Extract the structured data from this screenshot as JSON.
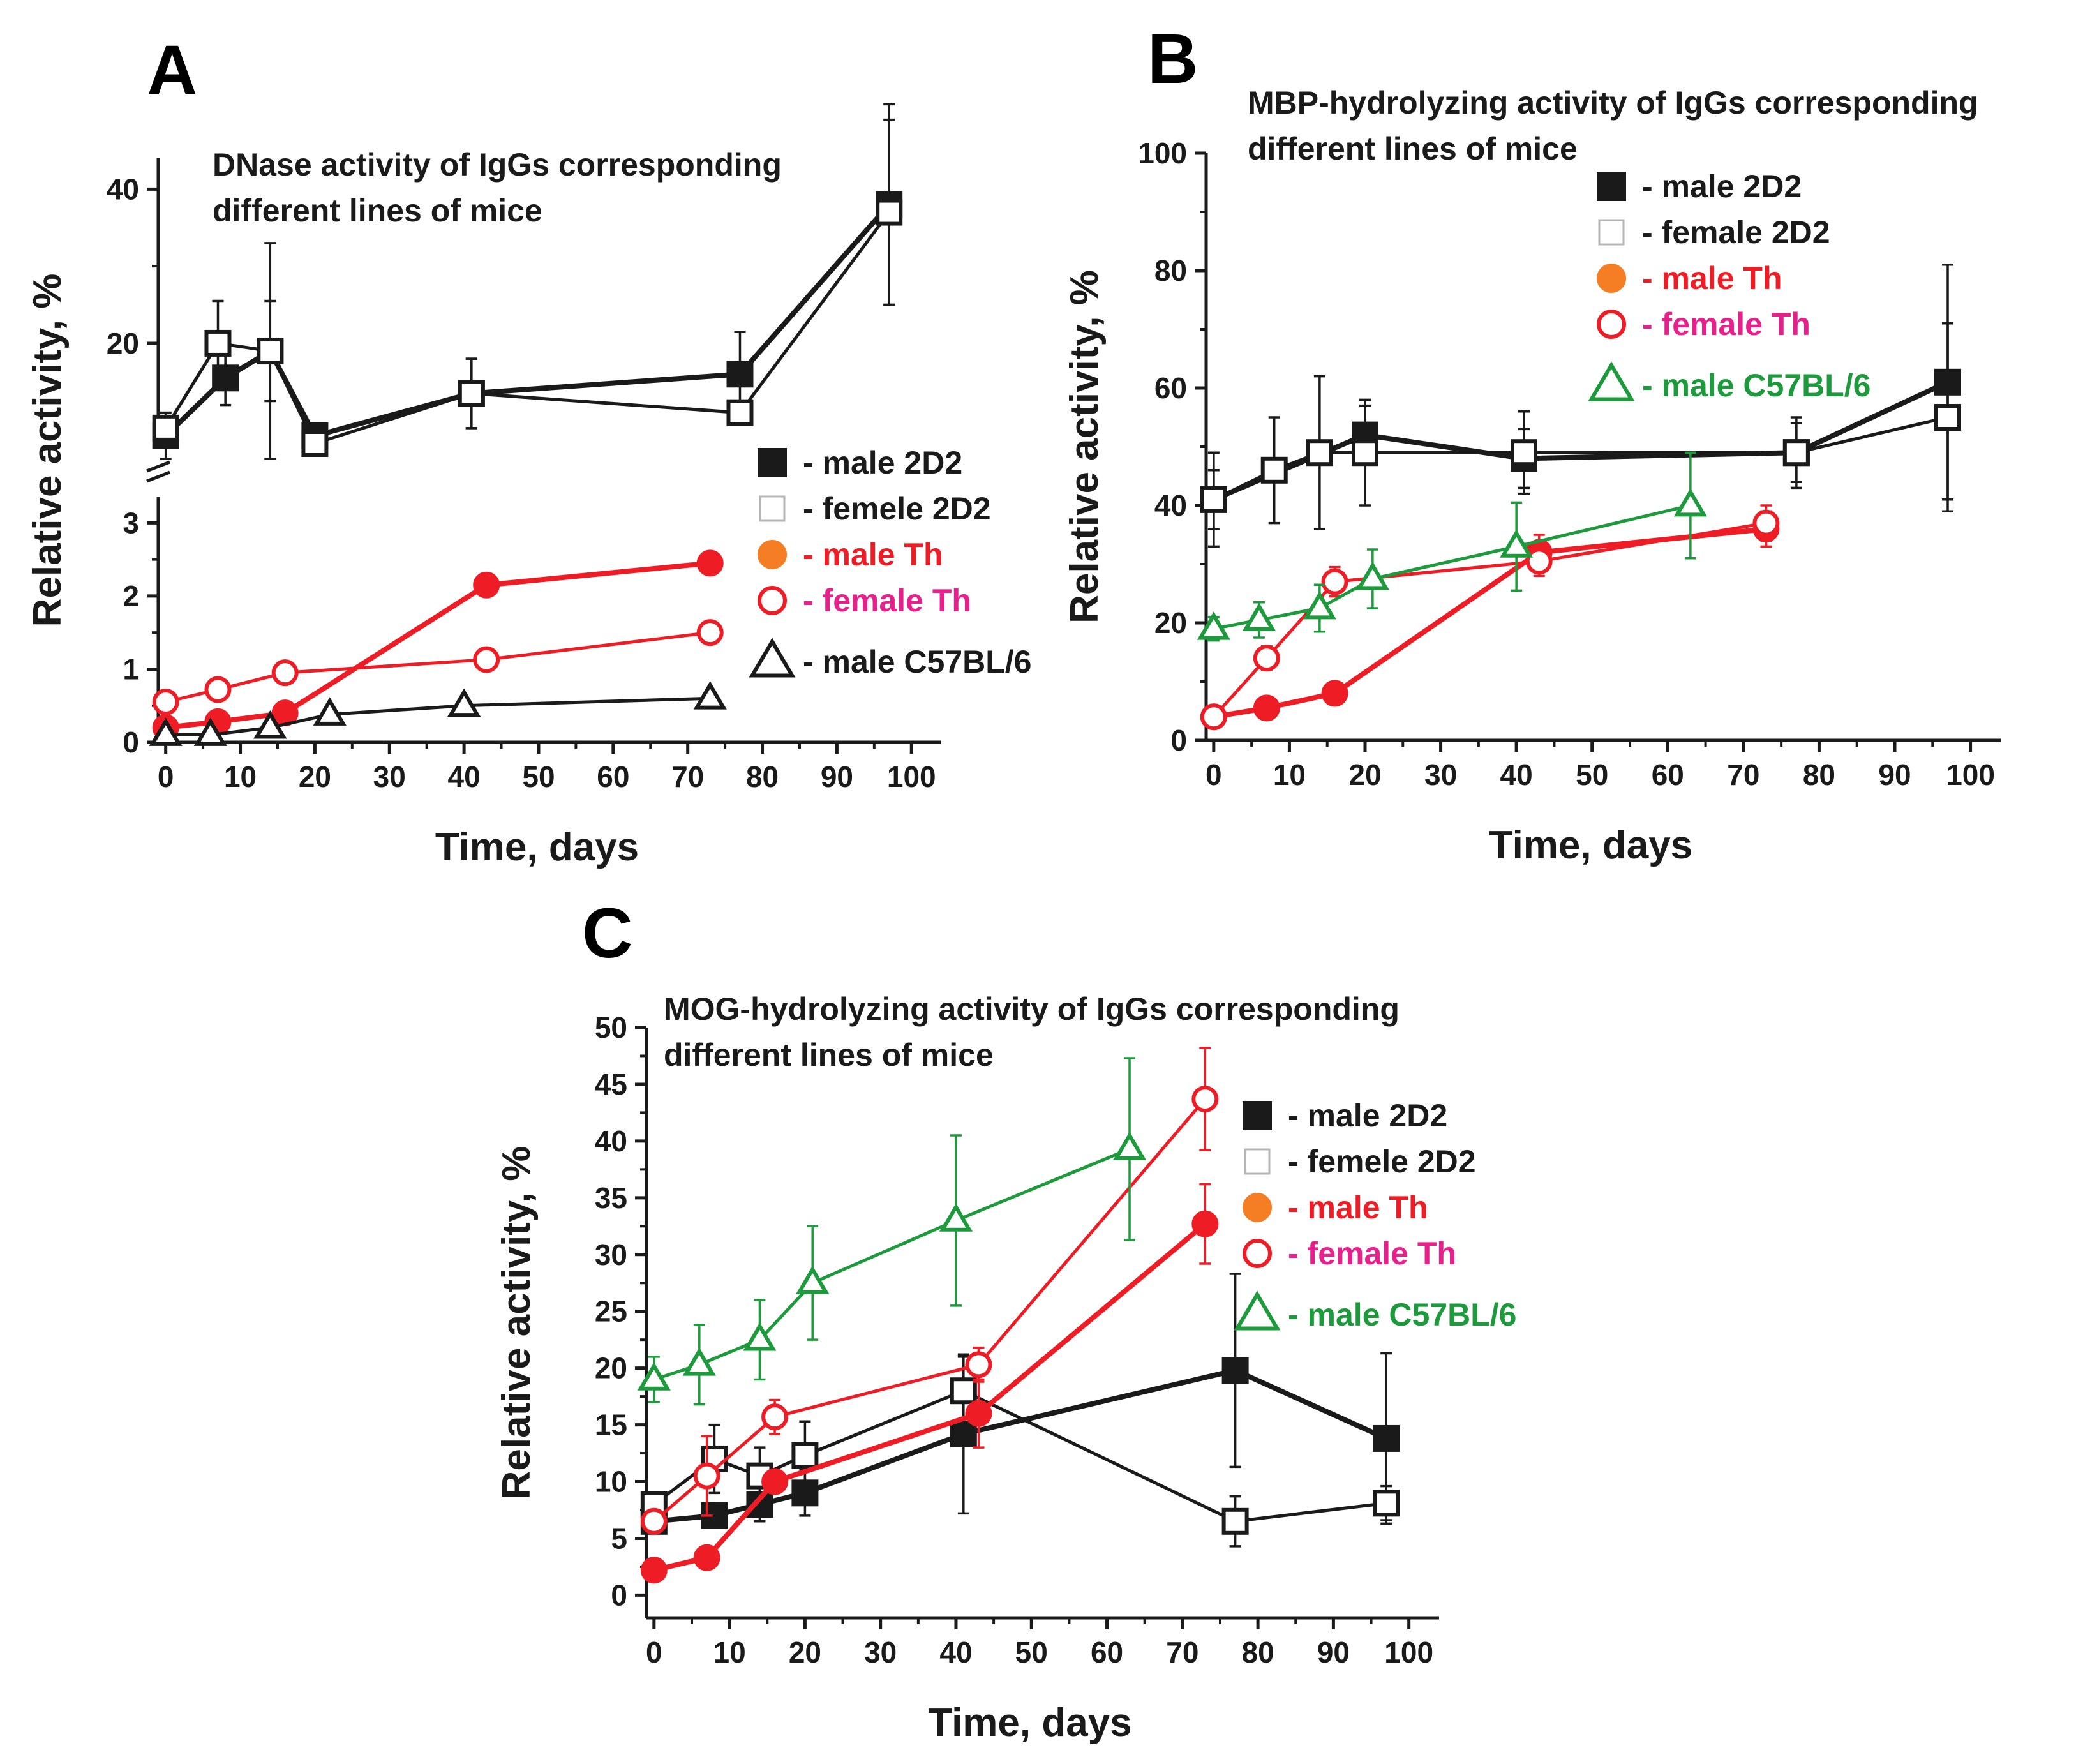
{
  "colors": {
    "black": "#1a1a1a",
    "red": "#ee1c25",
    "orange": "#f57d23",
    "magenta": "#e8208c",
    "green": "#1c9a3c"
  },
  "chart_data": [
    {
      "panel": "A",
      "type": "line",
      "title_lines": [
        "DNase  activity of IgGs corresponding",
        "different lines of mice"
      ],
      "xlabel": "Time, days",
      "ylabel": "Relative activity, %",
      "xlim": [
        -1,
        104
      ],
      "xticks": [
        0,
        10,
        20,
        30,
        40,
        50,
        60,
        70,
        80,
        90,
        100
      ],
      "y_axis_break": true,
      "ylim_lower": [
        0,
        3.3
      ],
      "yticks_lower": [
        0,
        1,
        2,
        3
      ],
      "ylim_upper": [
        7,
        44
      ],
      "yticks_upper": [
        20,
        40
      ],
      "legend_position": "right",
      "series": [
        {
          "name": "male 2D2",
          "legend_label": "- male 2D2",
          "label_color": "black",
          "marker": "square-filled",
          "color": "black",
          "segment": "upper",
          "x": [
            0,
            8,
            14,
            20,
            41,
            77,
            97
          ],
          "y": [
            8,
            15.5,
            19,
            8,
            13.5,
            16,
            38
          ],
          "err": [
            3,
            3.5,
            6.5,
            0,
            4.5,
            5.5,
            13
          ]
        },
        {
          "name": "femele 2D2",
          "legend_label": "- femele 2D2",
          "label_color": "black",
          "marker": "square-open",
          "color": "black",
          "segment": "upper",
          "x": [
            0,
            7,
            14,
            20,
            41,
            77,
            97
          ],
          "y": [
            9,
            20,
            19,
            7,
            13.5,
            11,
            37
          ],
          "err": [
            2,
            5.5,
            14,
            0,
            4.5,
            1.5,
            12
          ]
        },
        {
          "name": "male Th",
          "legend_label": "- male Th",
          "label_color": "red",
          "marker": "circle-filled",
          "color": "red",
          "segment": "lower",
          "legend_marker_color": "orange",
          "x": [
            0,
            7,
            16,
            43,
            73
          ],
          "y": [
            0.2,
            0.28,
            0.4,
            2.15,
            2.45
          ],
          "err": [
            0.04,
            0.05,
            0.06,
            0.15,
            0.15
          ]
        },
        {
          "name": "female Th",
          "legend_label": "- female Th",
          "label_color": "magenta",
          "marker": "circle-open",
          "color": "red",
          "segment": "lower",
          "x": [
            0,
            7,
            16,
            43,
            73
          ],
          "y": [
            0.55,
            0.72,
            0.95,
            1.13,
            1.5
          ],
          "err": [
            0.05,
            0.06,
            0.08,
            0.06,
            0.06
          ]
        },
        {
          "name": "male C57BL/6",
          "legend_label": "- male C57BL/6",
          "label_color": "black",
          "marker": "triangle-open",
          "color": "black",
          "segment": "lower",
          "x": [
            0,
            6,
            14,
            22,
            40,
            73
          ],
          "y": [
            0.1,
            0.1,
            0.2,
            0.38,
            0.5,
            0.6
          ],
          "err": [
            0.03,
            0.03,
            0.04,
            0.05,
            0.05,
            0.05
          ]
        }
      ]
    },
    {
      "panel": "B",
      "type": "line",
      "title_lines": [
        "MBP-hydrolyzing activity of IgGs corresponding",
        "different lines of mice"
      ],
      "xlabel": "Time, days",
      "ylabel": "Relative activity, %",
      "xlim": [
        -1,
        104
      ],
      "xticks": [
        0,
        10,
        20,
        30,
        40,
        50,
        60,
        70,
        80,
        90,
        100
      ],
      "ylim": [
        0,
        100
      ],
      "yticks": [
        0,
        20,
        40,
        60,
        80,
        100
      ],
      "legend_position": "top-right",
      "series": [
        {
          "name": "male 2D2",
          "legend_label": "- male 2D2",
          "label_color": "black",
          "marker": "square-filled",
          "color": "black",
          "x": [
            0,
            20,
            41,
            77,
            97
          ],
          "y": [
            41,
            52,
            48,
            49,
            61
          ],
          "err": [
            5,
            5,
            5,
            5,
            20
          ]
        },
        {
          "name": "female 2D2",
          "legend_label": "- female 2D2",
          "label_color": "black",
          "marker": "square-open",
          "color": "black",
          "x": [
            0,
            8,
            14,
            20,
            41,
            77,
            97
          ],
          "y": [
            41,
            46,
            49,
            49,
            49,
            49,
            55
          ],
          "err": [
            8,
            9,
            13,
            9,
            7,
            6,
            16
          ]
        },
        {
          "name": "male Th",
          "legend_label": "- male Th",
          "label_color": "red",
          "marker": "circle-filled",
          "color": "red",
          "legend_marker_color": "orange",
          "x": [
            0,
            7,
            16,
            43,
            73
          ],
          "y": [
            4,
            5.5,
            8,
            32,
            36
          ],
          "err": [
            1,
            1,
            1,
            3,
            3
          ]
        },
        {
          "name": "female Th",
          "legend_label": "- female Th",
          "label_color": "magenta",
          "marker": "circle-open",
          "color": "red",
          "x": [
            0,
            7,
            16,
            43,
            73
          ],
          "y": [
            4,
            14,
            27,
            30.5,
            37
          ],
          "err": [
            1.5,
            2,
            2.5,
            2.5,
            3
          ]
        },
        {
          "name": "male C57BL/6",
          "legend_label": "- male C57BL/6",
          "label_color": "green",
          "marker": "triangle-open",
          "color": "green",
          "x": [
            0,
            6,
            14,
            21,
            40,
            63
          ],
          "y": [
            19,
            20.5,
            22.5,
            27.5,
            33,
            40
          ],
          "err": [
            2,
            3,
            4,
            5,
            7.5,
            9
          ]
        }
      ]
    },
    {
      "panel": "C",
      "type": "line",
      "title_lines": [
        "MOG-hydrolyzing activity of IgGs corresponding",
        "different lines of mice"
      ],
      "xlabel": "Time, days",
      "ylabel": "Relative activity, %",
      "xlim": [
        -1,
        104
      ],
      "xticks": [
        0,
        10,
        20,
        30,
        40,
        50,
        60,
        70,
        80,
        90,
        100
      ],
      "ylim": [
        -2,
        50
      ],
      "yticks": [
        0,
        5,
        10,
        15,
        20,
        25,
        30,
        35,
        40,
        45,
        50
      ],
      "legend_position": "right",
      "series": [
        {
          "name": "male 2D2",
          "legend_label": "- male 2D2",
          "label_color": "black",
          "marker": "square-filled",
          "color": "black",
          "x": [
            0,
            8,
            14,
            20,
            41,
            77,
            97
          ],
          "y": [
            6.5,
            7,
            8,
            9,
            14.2,
            19.8,
            13.8
          ],
          "err": [
            1,
            1,
            1.5,
            2,
            7,
            8.5,
            7.5
          ]
        },
        {
          "name": "femele 2D2",
          "legend_label": "- femele 2D2",
          "label_color": "black",
          "marker": "square-open",
          "color": "black",
          "x": [
            0,
            8,
            14,
            20,
            41,
            77,
            97
          ],
          "y": [
            8,
            12,
            10.5,
            12.3,
            18,
            6.5,
            8.1
          ],
          "err": [
            1,
            3,
            2.5,
            3,
            3,
            2.2,
            1.5
          ]
        },
        {
          "name": "male Th",
          "legend_label": "- male Th",
          "label_color": "red",
          "marker": "circle-filled",
          "color": "red",
          "legend_marker_color": "orange",
          "x": [
            0,
            7,
            16,
            43,
            73
          ],
          "y": [
            2.2,
            3.3,
            10,
            16,
            32.7
          ],
          "err": [
            0.3,
            0.4,
            1,
            3,
            3.5
          ]
        },
        {
          "name": "female Th",
          "legend_label": "- female Th",
          "label_color": "magenta",
          "marker": "circle-open",
          "color": "red",
          "x": [
            0,
            7,
            16,
            43,
            73
          ],
          "y": [
            6.5,
            10.5,
            15.7,
            20.3,
            43.7
          ],
          "err": [
            1,
            3.5,
            1.5,
            1.5,
            4.5
          ]
        },
        {
          "name": "male C57BL/6",
          "legend_label": "- male C57BL/6",
          "label_color": "green",
          "marker": "triangle-open",
          "color": "green",
          "x": [
            0,
            6,
            14,
            21,
            40,
            63
          ],
          "y": [
            19,
            20.3,
            22.5,
            27.5,
            33,
            39.3
          ],
          "err": [
            2,
            3.5,
            3.5,
            5,
            7.5,
            8
          ]
        }
      ]
    }
  ]
}
